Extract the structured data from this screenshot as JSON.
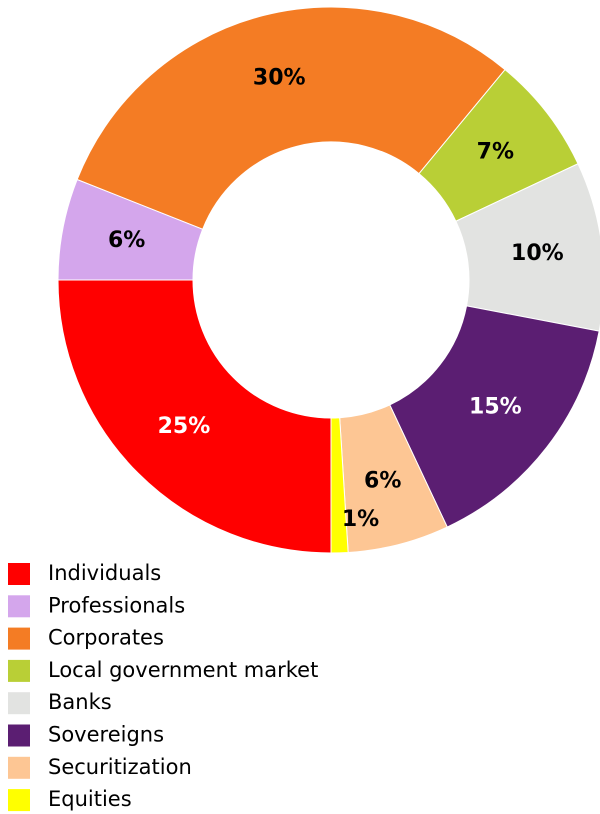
{
  "chart_data": {
    "type": "donut",
    "categories": [
      "Individuals",
      "Professionals",
      "Corporates",
      "Local government market",
      "Banks",
      "Sovereigns",
      "Securitization",
      "Equities"
    ],
    "values": [
      25,
      6,
      30,
      7,
      10,
      15,
      6,
      1
    ],
    "value_labels": [
      "25%",
      "6%",
      "30%",
      "7%",
      "10%",
      "15%",
      "6%",
      "1%"
    ],
    "colors": [
      "#ff0000",
      "#d4a6ec",
      "#f47c24",
      "#b9cf36",
      "#e2e3e1",
      "#5b1e72",
      "#fdc694",
      "#ffff00"
    ],
    "legend": "bottom-left"
  }
}
